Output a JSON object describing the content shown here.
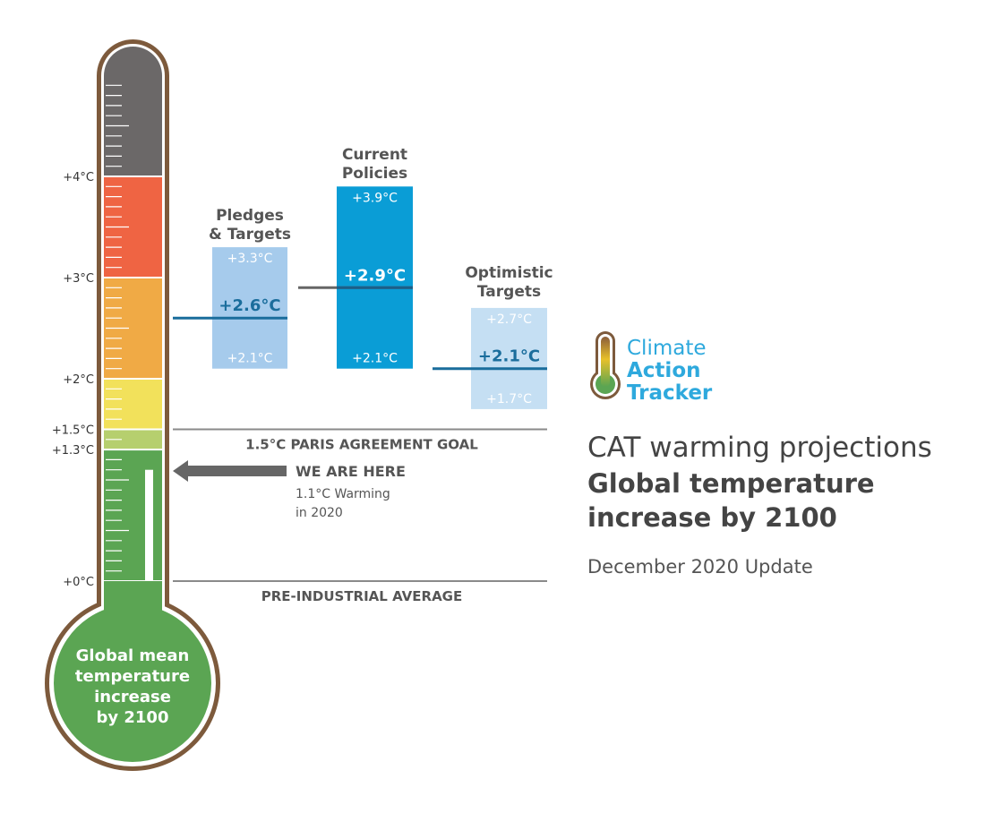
{
  "chart_data": {
    "type": "bar",
    "title": "Global temperature increase by 2100",
    "subtitle": "CAT warming projections",
    "update": "December 2020 Update",
    "logo": {
      "line1": "Climate",
      "line2": "Action",
      "line3": "Tracker",
      "colors": [
        "#2ea9dd",
        "#5aa552",
        "#e8c02a",
        "#8a5d3b"
      ]
    },
    "thermometer": {
      "bulb_label": [
        "Global mean",
        "temperature",
        "increase",
        "by 2100"
      ],
      "ticks": [
        {
          "value": 0,
          "label": "+0°C"
        },
        {
          "value": 1.3,
          "label": "+1.3°C"
        },
        {
          "value": 1.5,
          "label": "+1.5°C"
        },
        {
          "value": 2,
          "label": "+2°C"
        },
        {
          "value": 3,
          "label": "+3°C"
        },
        {
          "value": 4,
          "label": "+4°C"
        }
      ],
      "bands": [
        {
          "from": 0,
          "to": 1.3,
          "color": "#5ba553"
        },
        {
          "from": 1.3,
          "to": 1.5,
          "color": "#b6cf6e"
        },
        {
          "from": 1.5,
          "to": 2,
          "color": "#f2e15b"
        },
        {
          "from": 2,
          "to": 3,
          "color": "#f0aa45"
        },
        {
          "from": 3,
          "to": 4,
          "color": "#ef6443"
        },
        {
          "from": 4,
          "to": 5.1,
          "color": "#6b6868"
        }
      ],
      "fill_value": 1.1,
      "ylim": [
        0,
        5.1
      ]
    },
    "series": [
      {
        "name": "Pledges & Targets",
        "title_lines": [
          "Pledges",
          "& Targets"
        ],
        "low": 2.1,
        "central": 2.6,
        "high": 3.3,
        "low_label": "+2.1°C",
        "central_label": "+2.6°C",
        "high_label": "+3.3°C",
        "color": "#a6cbec",
        "central_color": "#1a6d9c"
      },
      {
        "name": "Current Policies",
        "title_lines": [
          "Current",
          "Policies"
        ],
        "low": 2.1,
        "central": 2.9,
        "high": 3.9,
        "low_label": "+2.1°C",
        "central_label": "+2.9°C",
        "high_label": "+3.9°C",
        "color": "#0a9dd6",
        "central_color": "#ffffff"
      },
      {
        "name": "Optimistic Targets",
        "title_lines": [
          "Optimistic",
          "Targets"
        ],
        "low": 1.7,
        "central": 2.1,
        "high": 2.7,
        "low_label": "+1.7°C",
        "central_label": "+2.1°C",
        "high_label": "+2.7°C",
        "color": "#c5dff3",
        "central_color": "#1a6d9c"
      }
    ],
    "reference_lines": [
      {
        "value": 1.5,
        "label": "1.5°C PARIS AGREEMENT GOAL"
      },
      {
        "value": 0,
        "label": "PRE-INDUSTRIAL AVERAGE"
      }
    ],
    "current": {
      "value": 1.1,
      "title": "WE ARE HERE",
      "line1": "1.1°C Warming",
      "line2": "in 2020"
    }
  }
}
